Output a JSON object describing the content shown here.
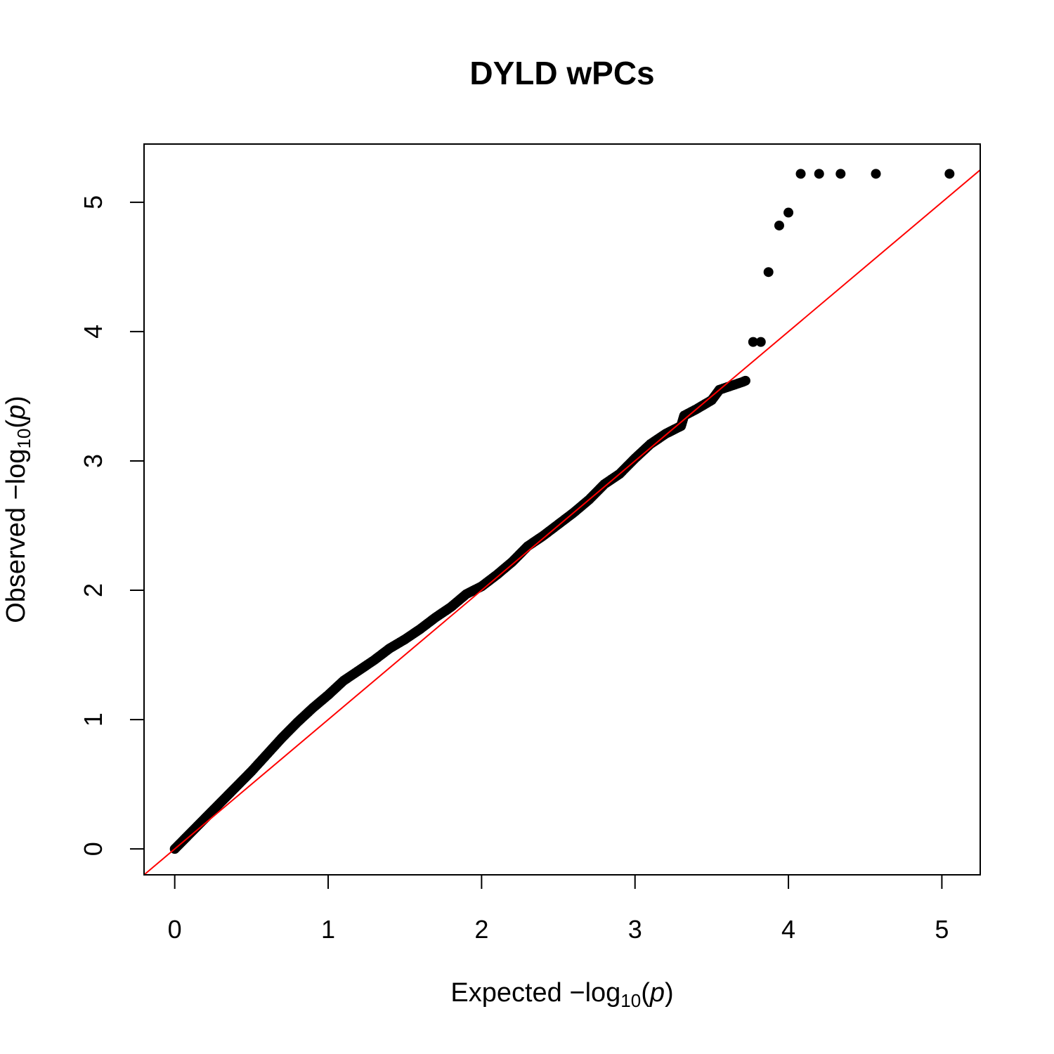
{
  "chart_data": {
    "type": "scatter",
    "title": "DYLD wPCs",
    "xlabel": {
      "prefix": "Expected",
      "minus": "−",
      "log": "log",
      "base": "10",
      "open": "(",
      "var": "p",
      "close": ")"
    },
    "ylabel": {
      "prefix": "Observed",
      "minus": "−",
      "log": "log",
      "base": "10",
      "open": "(",
      "var": "p",
      "close": ")"
    },
    "xlim": [
      -0.2,
      5.25
    ],
    "ylim": [
      -0.2,
      5.45
    ],
    "x_ticks": [
      0,
      1,
      2,
      3,
      4,
      5
    ],
    "y_ticks": [
      0,
      1,
      2,
      3,
      4,
      5
    ],
    "x_tick_labels": [
      "0",
      "1",
      "2",
      "3",
      "4",
      "5"
    ],
    "y_tick_labels": [
      "0",
      "1",
      "2",
      "3",
      "4",
      "5"
    ],
    "grid": false,
    "point_color": "#000000",
    "reference_line": {
      "slope": 1,
      "intercept": 0,
      "color": "#ff0000"
    },
    "curve_points": [
      [
        0.0,
        0.0
      ],
      [
        0.1,
        0.12
      ],
      [
        0.2,
        0.24
      ],
      [
        0.3,
        0.36
      ],
      [
        0.4,
        0.48
      ],
      [
        0.5,
        0.6
      ],
      [
        0.6,
        0.73
      ],
      [
        0.7,
        0.86
      ],
      [
        0.8,
        0.98
      ],
      [
        0.9,
        1.09
      ],
      [
        1.0,
        1.19
      ],
      [
        1.1,
        1.3
      ],
      [
        1.2,
        1.38
      ],
      [
        1.3,
        1.46
      ],
      [
        1.4,
        1.55
      ],
      [
        1.5,
        1.62
      ],
      [
        1.6,
        1.7
      ],
      [
        1.7,
        1.79
      ],
      [
        1.8,
        1.87
      ],
      [
        1.9,
        1.97
      ],
      [
        2.0,
        2.03
      ],
      [
        2.1,
        2.12
      ],
      [
        2.2,
        2.22
      ],
      [
        2.3,
        2.34
      ],
      [
        2.4,
        2.42
      ],
      [
        2.5,
        2.51
      ],
      [
        2.6,
        2.6
      ],
      [
        2.7,
        2.7
      ],
      [
        2.8,
        2.82
      ],
      [
        2.9,
        2.9
      ],
      [
        3.0,
        3.02
      ],
      [
        3.1,
        3.13
      ],
      [
        3.2,
        3.21
      ],
      [
        3.3,
        3.27
      ],
      [
        3.32,
        3.35
      ],
      [
        3.4,
        3.4
      ],
      [
        3.5,
        3.47
      ],
      [
        3.55,
        3.55
      ],
      [
        3.6,
        3.57
      ],
      [
        3.65,
        3.59
      ],
      [
        3.7,
        3.61
      ],
      [
        3.72,
        3.62
      ]
    ],
    "points": [
      [
        3.77,
        3.92
      ],
      [
        3.82,
        3.92
      ],
      [
        3.87,
        4.46
      ],
      [
        3.94,
        4.82
      ],
      [
        4.0,
        4.92
      ],
      [
        4.08,
        5.22
      ],
      [
        4.2,
        5.22
      ],
      [
        4.34,
        5.22
      ],
      [
        4.57,
        5.22
      ],
      [
        5.05,
        5.22
      ]
    ]
  }
}
